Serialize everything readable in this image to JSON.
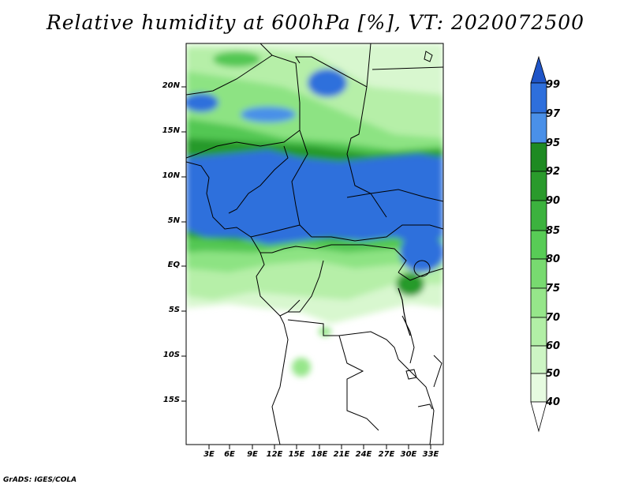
{
  "title": "Relative humidity at 600hPa [%], VT: 2020072500",
  "credit": "GrADS: IGES/COLA",
  "map": {
    "lat_labels": [
      "20N",
      "15N",
      "10N",
      "5N",
      "EQ",
      "5S",
      "10S",
      "15S"
    ],
    "lon_labels": [
      "3E",
      "6E",
      "9E",
      "12E",
      "15E",
      "18E",
      "21E",
      "24E",
      "27E",
      "30E",
      "33E"
    ]
  },
  "colorbar": {
    "levels": [
      "40",
      "50",
      "60",
      "70",
      "75",
      "80",
      "85",
      "90",
      "92",
      "95",
      "97",
      "99"
    ],
    "colors": [
      "#ffffff",
      "#e6fbe0",
      "#cdf5c4",
      "#b2efa6",
      "#96e68a",
      "#78da70",
      "#58cc56",
      "#3cb23e",
      "#2a9a2c",
      "#1e8a22",
      "#4a90e8",
      "#2e6fdc",
      "#1f55c8"
    ]
  }
}
